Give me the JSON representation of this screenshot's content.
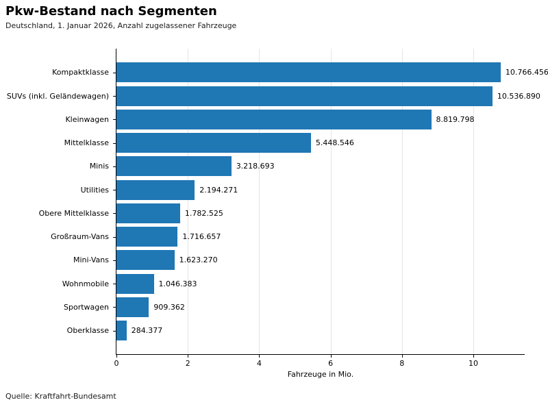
{
  "chart_data": {
    "type": "bar",
    "orientation": "horizontal",
    "title": "Pkw-Bestand nach Segmenten",
    "subtitle": "Deutschland, 1. Januar 2026, Anzahl zugelassener Fahrzeuge",
    "xlabel": "Fahrzeuge in Mio.",
    "categories": [
      "Kompaktklasse",
      "SUVs (inkl. Geländewagen)",
      "Kleinwagen",
      "Mittelklasse",
      "Minis",
      "Utilities",
      "Obere Mittelklasse",
      "Großraum-Vans",
      "Mini-Vans",
      "Wohnmobile",
      "Sportwagen",
      "Oberklasse"
    ],
    "values": [
      10766456,
      10536890,
      8819798,
      5448546,
      3218693,
      2194271,
      1782525,
      1716657,
      1623270,
      1046383,
      909362,
      284377
    ],
    "value_labels": [
      "10.766.456",
      "10.536.890",
      "8.819.798",
      "5.448.546",
      "3.218.693",
      "2.194.271",
      "1.782.525",
      "1.716.657",
      "1.623.270",
      "1.046.383",
      "909.362",
      "284.377"
    ],
    "x_ticks": [
      0,
      2,
      4,
      6,
      8,
      10
    ],
    "xlim": [
      0,
      11.44
    ],
    "grid": "vertical",
    "legend": "none",
    "bar_color": "#1f77b4",
    "gridline_color": "#e5e5e5",
    "source": "Quelle: Kraftfahrt-Bundesamt"
  }
}
